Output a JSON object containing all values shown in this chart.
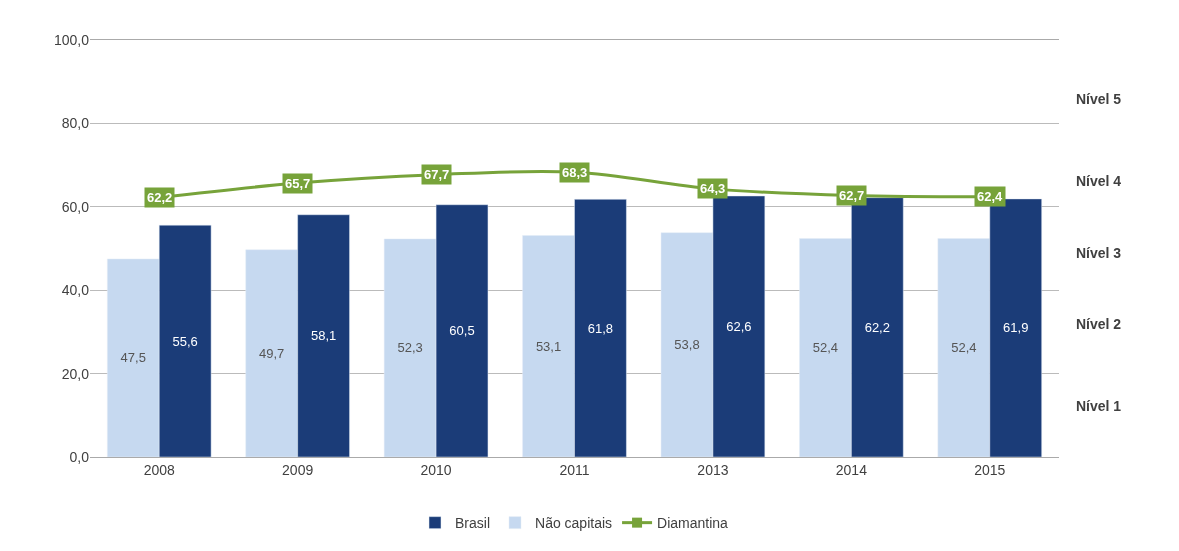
{
  "chart_data": {
    "type": "bar",
    "categories": [
      "2008",
      "2009",
      "2010",
      "2011",
      "2013",
      "2014",
      "2015"
    ],
    "series": [
      {
        "name": "Brasil",
        "color": "#1b3c78",
        "values": [
          55.6,
          58.1,
          60.5,
          61.8,
          62.6,
          62.2,
          61.9
        ],
        "value_labels": [
          "55,6",
          "58,1",
          "60,5",
          "61,8",
          "62,6",
          "62,2",
          "61,9"
        ]
      },
      {
        "name": "Não capitais",
        "color": "#c6d9f0",
        "values": [
          47.5,
          49.7,
          52.3,
          53.1,
          53.8,
          52.4,
          52.4
        ],
        "value_labels": [
          "47,5",
          "49,7",
          "52,3",
          "53,1",
          "53,8",
          "52,4",
          "52,4"
        ]
      },
      {
        "name": "Diamantina",
        "type": "line",
        "marker": "square",
        "color": "#77a33a",
        "values": [
          62.2,
          65.7,
          67.7,
          68.3,
          64.3,
          62.7,
          62.4
        ],
        "value_labels": [
          "62,2",
          "65,7",
          "67,7",
          "68,3",
          "64,3",
          "62,7",
          "62,4"
        ]
      }
    ],
    "ylim": [
      0,
      100
    ],
    "yticks": [
      {
        "value": 0,
        "label": "0,0"
      },
      {
        "value": 20,
        "label": "20,0"
      },
      {
        "value": 40,
        "label": "40,0"
      },
      {
        "value": 60,
        "label": "60,0"
      },
      {
        "value": 80,
        "label": "80,0"
      },
      {
        "value": 100,
        "label": "100,0"
      }
    ],
    "annotations": [
      "Nível 5",
      "Nível 4",
      "Nível 3",
      "Nível 2",
      "Nível 1"
    ],
    "grid": "y",
    "legend": "bottom"
  }
}
